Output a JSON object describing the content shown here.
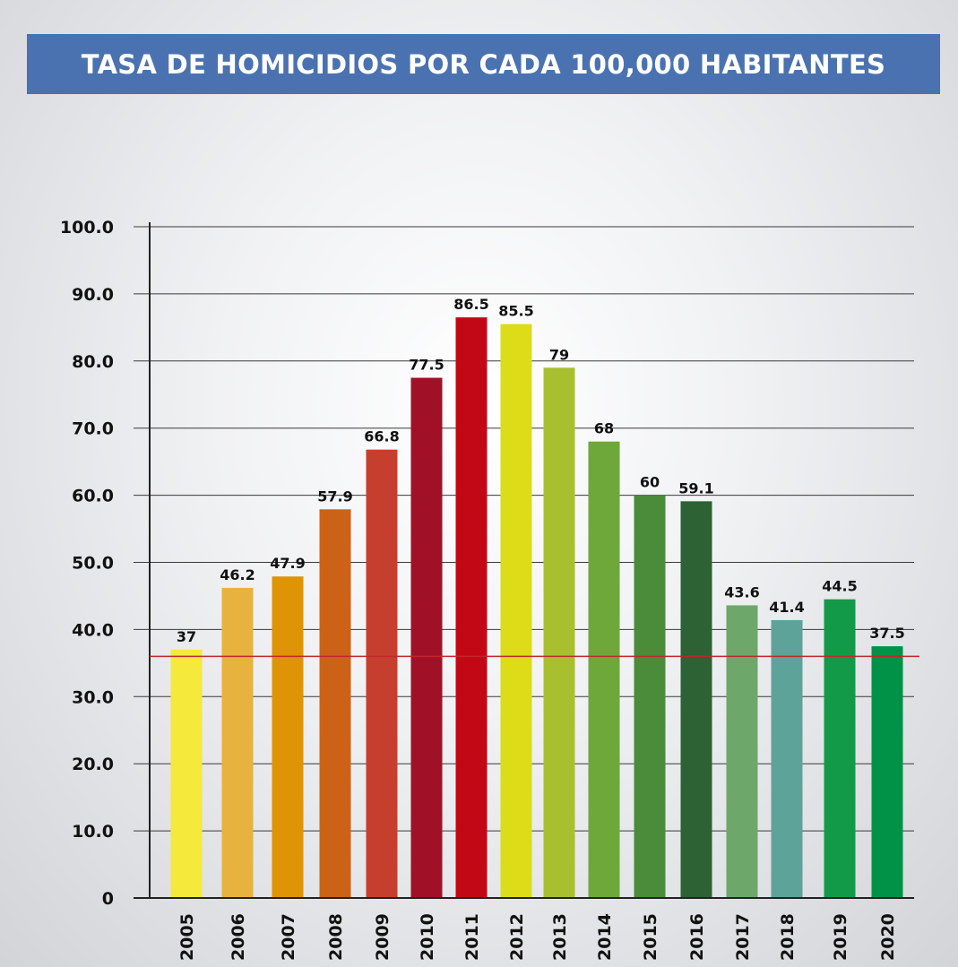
{
  "chart_data": {
    "type": "bar",
    "title": "TASA DE HOMICIDIOS POR CADA 100,000 HABITANTES",
    "categories": [
      "2005",
      "2006",
      "2007",
      "2008",
      "2009",
      "2010",
      "2011",
      "2012",
      "2013",
      "2014",
      "2015",
      "2016",
      "2017",
      "2018",
      "2019",
      "2020"
    ],
    "values": [
      37,
      46.2,
      47.9,
      57.9,
      66.8,
      77.5,
      86.5,
      85.5,
      79,
      68,
      60,
      59.1,
      43.6,
      41.4,
      44.5,
      37.5
    ],
    "value_labels": [
      "37",
      "46.2",
      "47.9",
      "57.9",
      "66.8",
      "77.5",
      "86.5",
      "85.5",
      "79",
      "68",
      "60",
      "59.1",
      "43.6",
      "41.4",
      "44.5",
      "37.5"
    ],
    "colors": [
      "#f5e93c",
      "#e8b23e",
      "#de9404",
      "#cc6217",
      "#c63f2e",
      "#a01127",
      "#c20814",
      "#dcdc18",
      "#a8c030",
      "#6fa83a",
      "#4a8c3a",
      "#2c6234",
      "#6da86a",
      "#5ea39a",
      "#139a48",
      "#009246"
    ],
    "ylim": [
      0,
      100
    ],
    "yticks": [
      0,
      10,
      20,
      30,
      40,
      50,
      60,
      70,
      80,
      90,
      100
    ],
    "ytick_labels": [
      "0",
      "10.0",
      "20.0",
      "30.0",
      "40.0",
      "50.0",
      "60.0",
      "70.0",
      "80.0",
      "90.0",
      "100.0"
    ],
    "reference_line": {
      "value": 36,
      "color": "#c0282d"
    },
    "grid": true,
    "xlabel": "",
    "ylabel": ""
  }
}
